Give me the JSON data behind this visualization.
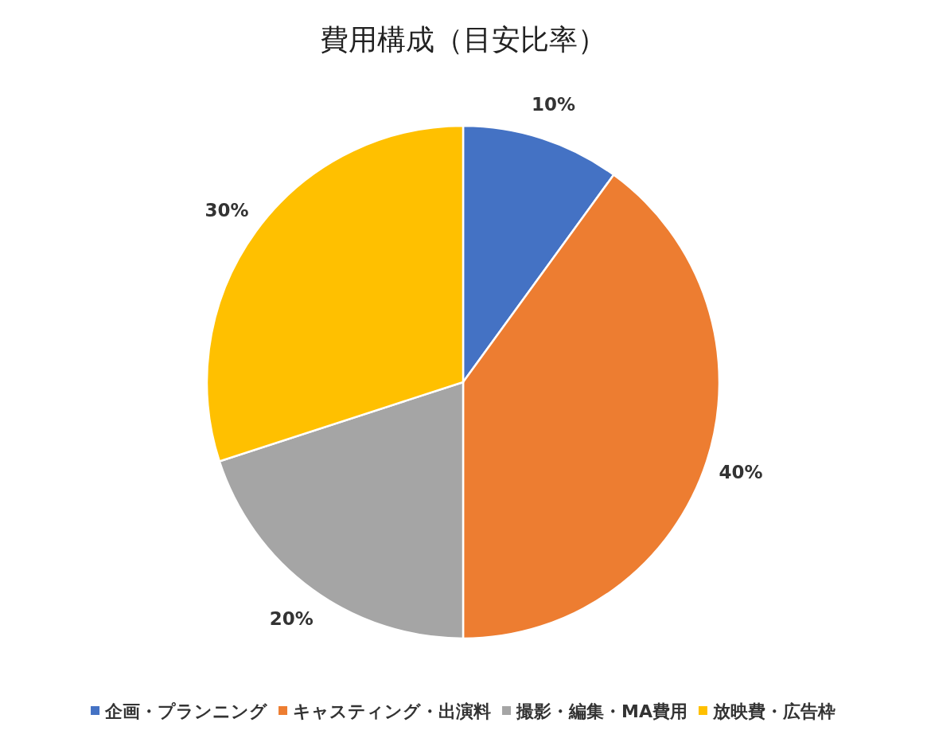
{
  "chart_data": {
    "type": "pie",
    "title": "費用構成（目安比率）",
    "categories": [
      "企画・プランニング",
      "キャスティング・出演料",
      "撮影・編集・MA費用",
      "放映費・広告枠"
    ],
    "values": [
      10,
      40,
      20,
      30
    ],
    "value_labels": [
      "10%",
      "40%",
      "20%",
      "30%"
    ],
    "colors": [
      "#4472c4",
      "#ed7d31",
      "#a5a5a5",
      "#ffc000"
    ],
    "legend": "bottom"
  }
}
